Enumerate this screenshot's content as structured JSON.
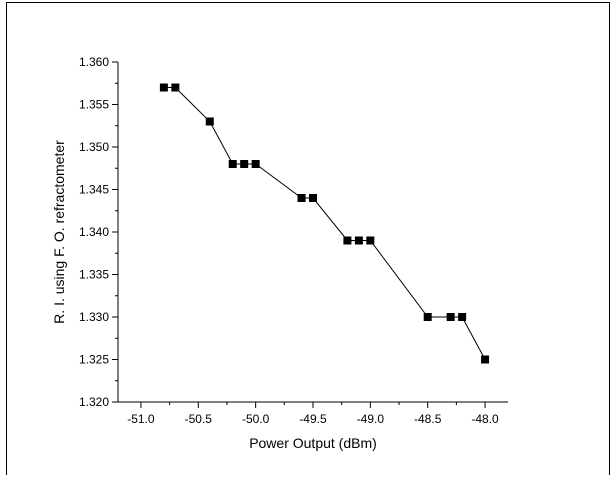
{
  "chart_data": {
    "type": "scatter",
    "title": "",
    "xlabel": "Power Output (dBm)",
    "ylabel": "R. I. using F. O. refractometer",
    "xlim": [
      -51.2,
      -47.8
    ],
    "ylim": [
      1.32,
      1.36
    ],
    "xticks": [
      -51.0,
      -50.5,
      -50.0,
      -49.5,
      -49.0,
      -48.5,
      -48.0
    ],
    "yticks": [
      1.32,
      1.325,
      1.33,
      1.335,
      1.34,
      1.345,
      1.35,
      1.355,
      1.36
    ],
    "grid": false,
    "legend": "none",
    "connect_points": true,
    "marker": "square",
    "series": [
      {
        "x": [
          -50.8,
          -50.7,
          -50.4,
          -50.2,
          -50.1,
          -50.0,
          -49.6,
          -49.5,
          -49.2,
          -49.1,
          -49.0,
          -48.5,
          -48.3,
          -48.2,
          -48.0
        ],
        "y": [
          1.357,
          1.357,
          1.353,
          1.348,
          1.348,
          1.348,
          1.344,
          1.344,
          1.339,
          1.339,
          1.339,
          1.33,
          1.33,
          1.33,
          1.325
        ]
      }
    ],
    "colors": {
      "marker": "#000000",
      "line": "#000000",
      "axis": "#000000"
    }
  }
}
